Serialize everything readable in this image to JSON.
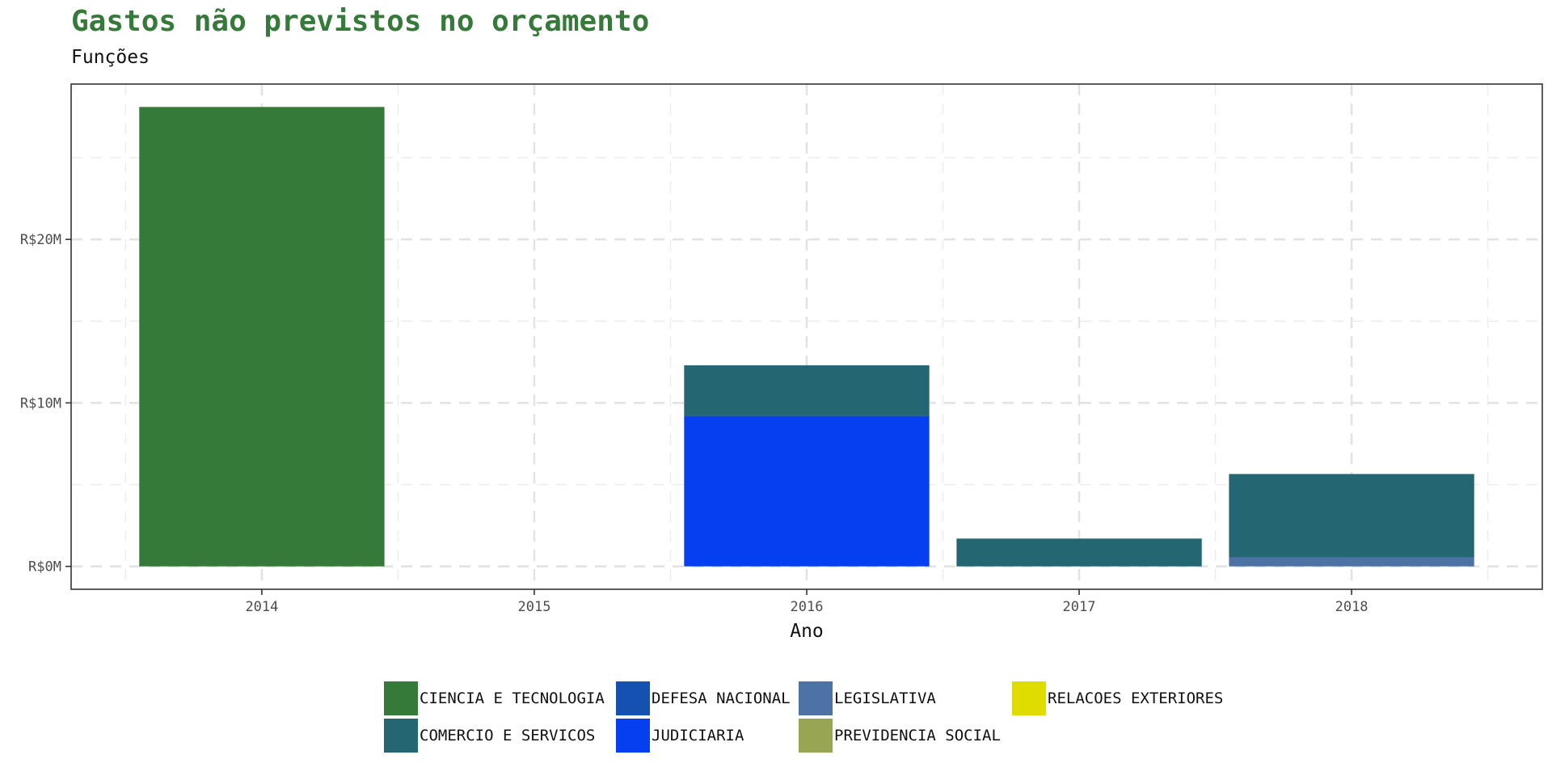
{
  "chart_data": {
    "type": "bar",
    "stacked": true,
    "title": "Gastos não previstos no orçamento",
    "subtitle": "Funções",
    "xlabel": "Ano",
    "ylabel": "",
    "categories": [
      "2014",
      "2015",
      "2016",
      "2017",
      "2018"
    ],
    "ylim": [
      -1.4,
      29.5
    ],
    "yticks": [
      0,
      10,
      20
    ],
    "ytick_labels": [
      "R$0M",
      "R$10M",
      "R$20M"
    ],
    "grid": true,
    "legend_position": "bottom",
    "series": [
      {
        "name": "CIENCIA E TECNOLOGIA",
        "color": "#367a3a",
        "values": [
          28.1,
          0,
          0,
          0,
          0
        ]
      },
      {
        "name": "COMERCIO E SERVICOS",
        "color": "#246672",
        "values": [
          0,
          0,
          3.1,
          1.7,
          5.1
        ]
      },
      {
        "name": "DEFESA NACIONAL",
        "color": "#1551b0",
        "values": [
          0,
          0,
          0,
          0,
          0
        ]
      },
      {
        "name": "JUDICIARIA",
        "color": "#053ff0",
        "values": [
          0,
          0,
          9.2,
          0,
          0
        ]
      },
      {
        "name": "LEGISLATIVA",
        "color": "#4c72a6",
        "values": [
          0,
          0,
          0,
          0,
          0.55
        ]
      },
      {
        "name": "PREVIDENCIA SOCIAL",
        "color": "#98a653",
        "values": [
          0,
          0,
          0,
          0,
          0
        ]
      },
      {
        "name": "RELACOES EXTERIORES",
        "color": "#dfdc00",
        "values": [
          0,
          0,
          0,
          0,
          0
        ]
      }
    ],
    "stack_order": [
      "CIENCIA E TECNOLOGIA",
      "JUDICIARIA",
      "LEGISLATIVA",
      "COMERCIO E SERVICOS"
    ]
  }
}
